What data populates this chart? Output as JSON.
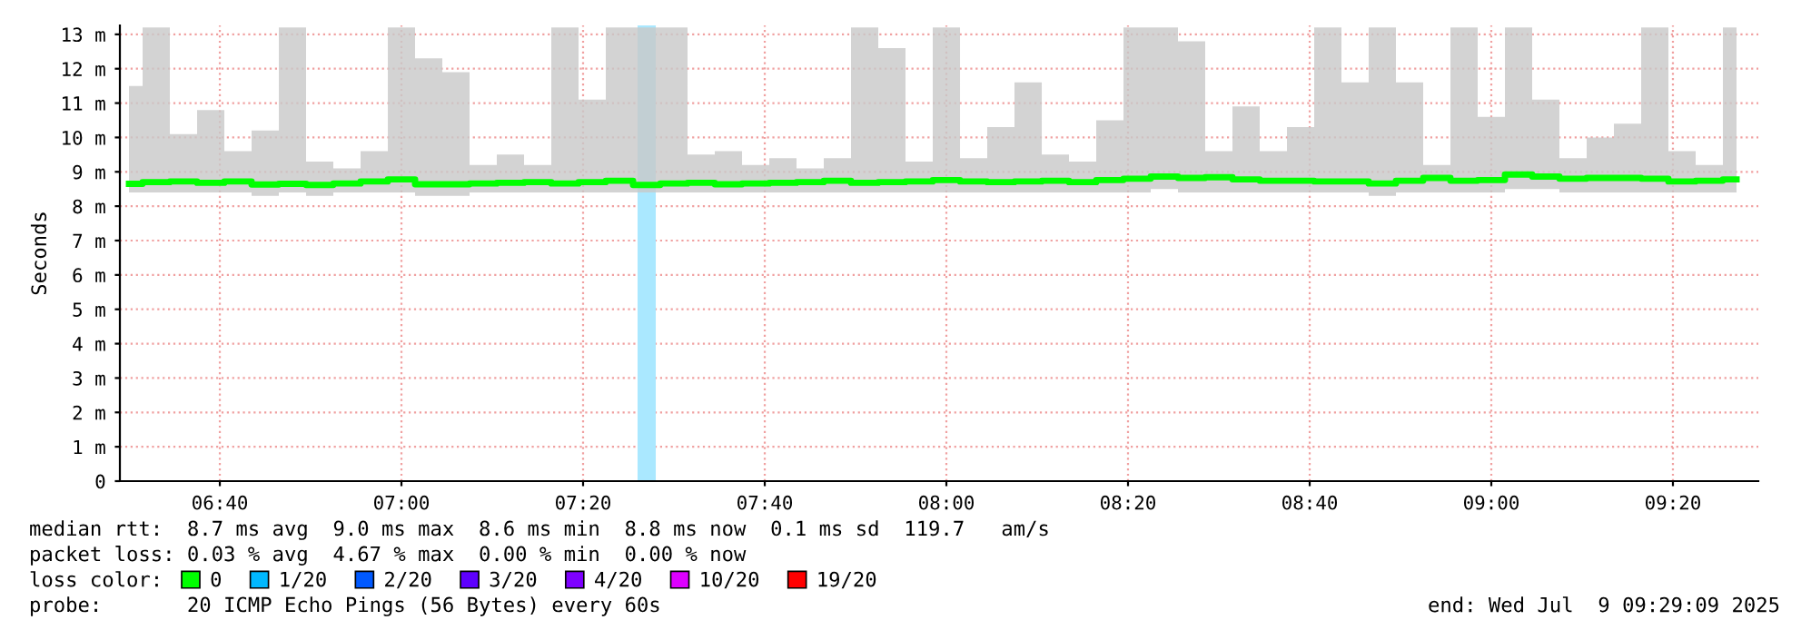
{
  "chart_data": {
    "type": "line",
    "ylabel": "Seconds",
    "legend_title": "loss color:",
    "legend": "bottom",
    "grid": true,
    "line_style": "solid",
    "marker": "none",
    "xlim": [
      6.4833,
      9.49
    ],
    "xticks": [
      {
        "value": 6.6667,
        "label": "06:40"
      },
      {
        "value": 7.0,
        "label": "07:00"
      },
      {
        "value": 7.3333,
        "label": "07:20"
      },
      {
        "value": 7.6667,
        "label": "07:40"
      },
      {
        "value": 8.0,
        "label": "08:00"
      },
      {
        "value": 8.3333,
        "label": "08:20"
      },
      {
        "value": 8.6667,
        "label": "08:40"
      },
      {
        "value": 9.0,
        "label": "09:00"
      },
      {
        "value": 9.3333,
        "label": "09:20"
      }
    ],
    "ylim": [
      0,
      13.26
    ],
    "yticks": [
      0,
      {
        "value": 1,
        "label": "1 m"
      },
      {
        "value": 2,
        "label": "2 m"
      },
      {
        "value": 3,
        "label": "3 m"
      },
      {
        "value": 4,
        "label": "4 m"
      },
      {
        "value": 5,
        "label": "5 m"
      },
      {
        "value": 6,
        "label": "6 m"
      },
      {
        "value": 7,
        "label": "7 m"
      },
      {
        "value": 8,
        "label": "8 m"
      },
      {
        "value": 9,
        "label": "9 m"
      },
      {
        "value": 10,
        "label": "10 m"
      },
      {
        "value": 11,
        "label": "11 m"
      },
      {
        "value": 12,
        "label": "12 m"
      },
      {
        "value": 13,
        "label": "13 m"
      }
    ],
    "x": [
      6.5,
      6.55,
      6.6,
      6.65,
      6.7,
      6.75,
      6.8,
      6.85,
      6.9,
      6.95,
      7.0,
      7.05,
      7.1,
      7.15,
      7.2,
      7.25,
      7.3,
      7.35,
      7.4,
      7.45,
      7.5,
      7.55,
      7.6,
      7.65,
      7.7,
      7.75,
      7.8,
      7.85,
      7.9,
      7.95,
      8.0,
      8.05,
      8.1,
      8.15,
      8.2,
      8.25,
      8.3,
      8.35,
      8.4,
      8.45,
      8.5,
      8.55,
      8.6,
      8.65,
      8.7,
      8.75,
      8.8,
      8.85,
      8.9,
      8.95,
      9.0,
      9.05,
      9.1,
      9.15,
      9.2,
      9.25,
      9.3,
      9.35,
      9.4,
      9.45
    ],
    "series": [
      {
        "name": "0",
        "color": "#00ff00",
        "values": [
          8.65,
          8.7,
          8.72,
          8.68,
          8.72,
          8.63,
          8.65,
          8.62,
          8.66,
          8.72,
          8.78,
          8.64,
          8.64,
          8.66,
          8.68,
          8.7,
          8.66,
          8.7,
          8.74,
          8.62,
          8.66,
          8.68,
          8.64,
          8.66,
          8.68,
          8.7,
          8.74,
          8.68,
          8.7,
          8.72,
          8.76,
          8.72,
          8.7,
          8.72,
          8.74,
          8.7,
          8.76,
          8.8,
          8.86,
          8.82,
          8.84,
          8.78,
          8.74,
          8.74,
          8.72,
          8.72,
          8.66,
          8.74,
          8.82,
          8.74,
          8.76,
          8.92,
          8.86,
          8.8,
          8.82,
          8.82,
          8.8,
          8.72,
          8.74,
          8.78
        ],
        "lower": [
          8.4,
          8.4,
          8.4,
          8.4,
          8.4,
          8.3,
          8.4,
          8.3,
          8.4,
          8.4,
          8.4,
          8.3,
          8.3,
          8.4,
          8.4,
          8.4,
          8.4,
          8.4,
          8.4,
          8.4,
          8.4,
          8.4,
          8.4,
          8.4,
          8.4,
          8.4,
          8.4,
          8.4,
          8.4,
          8.4,
          8.4,
          8.4,
          8.4,
          8.4,
          8.4,
          8.4,
          8.4,
          8.4,
          8.5,
          8.4,
          8.4,
          8.4,
          8.4,
          8.4,
          8.4,
          8.4,
          8.3,
          8.4,
          8.4,
          8.4,
          8.4,
          8.5,
          8.5,
          8.4,
          8.4,
          8.4,
          8.4,
          8.4,
          8.4,
          8.4
        ],
        "upper": [
          11.5,
          13.2,
          10.1,
          10.8,
          9.6,
          10.2,
          13.2,
          9.3,
          9.1,
          9.6,
          13.2,
          12.3,
          11.9,
          9.2,
          9.5,
          9.2,
          13.2,
          11.1,
          13.2,
          13.2,
          13.2,
          9.5,
          9.6,
          9.2,
          9.4,
          9.1,
          9.4,
          13.2,
          12.6,
          9.3,
          13.2,
          9.4,
          10.3,
          11.6,
          9.5,
          9.3,
          10.5,
          13.2,
          13.2,
          12.8,
          9.6,
          10.9,
          9.6,
          10.3,
          13.2,
          11.6,
          13.2,
          11.6,
          9.2,
          13.2,
          10.6,
          13.2,
          11.1,
          9.4,
          10.0,
          10.4,
          13.2,
          9.6,
          9.2,
          13.2
        ]
      },
      {
        "name": "1/20",
        "color": "#00b8ff",
        "values": [
          null,
          null,
          null,
          null,
          null,
          null,
          null,
          null,
          null,
          null,
          null,
          null,
          null,
          null,
          null,
          null,
          null,
          null,
          null,
          null,
          null,
          null,
          null,
          null,
          null,
          null,
          null,
          null,
          null,
          null,
          null,
          null,
          null,
          null,
          null,
          null,
          null,
          null,
          null,
          null,
          null,
          null,
          null,
          null,
          null,
          null,
          null,
          null,
          null,
          null,
          null,
          null,
          null,
          null,
          null,
          null,
          null,
          null,
          null,
          null
        ]
      },
      {
        "name": "2/20",
        "color": "#0059ff",
        "values": [
          null,
          null,
          null,
          null,
          null,
          null,
          null,
          null,
          null,
          null,
          null,
          null,
          null,
          null,
          null,
          null,
          null,
          null,
          null,
          null,
          null,
          null,
          null,
          null,
          null,
          null,
          null,
          null,
          null,
          null,
          null,
          null,
          null,
          null,
          null,
          null,
          null,
          null,
          null,
          null,
          null,
          null,
          null,
          null,
          null,
          null,
          null,
          null,
          null,
          null,
          null,
          null,
          null,
          null,
          null,
          null,
          null,
          null,
          null,
          null
        ]
      },
      {
        "name": "3/20",
        "color": "#5e00ff",
        "values": [
          null,
          null,
          null,
          null,
          null,
          null,
          null,
          null,
          null,
          null,
          null,
          null,
          null,
          null,
          null,
          null,
          null,
          null,
          null,
          null,
          null,
          null,
          null,
          null,
          null,
          null,
          null,
          null,
          null,
          null,
          null,
          null,
          null,
          null,
          null,
          null,
          null,
          null,
          null,
          null,
          null,
          null,
          null,
          null,
          null,
          null,
          null,
          null,
          null,
          null,
          null,
          null,
          null,
          null,
          null,
          null,
          null,
          null,
          null,
          null
        ]
      },
      {
        "name": "4/20",
        "color": "#7e00ff",
        "values": [
          null,
          null,
          null,
          null,
          null,
          null,
          null,
          null,
          null,
          null,
          null,
          null,
          null,
          null,
          null,
          null,
          null,
          null,
          null,
          null,
          null,
          null,
          null,
          null,
          null,
          null,
          null,
          null,
          null,
          null,
          null,
          null,
          null,
          null,
          null,
          null,
          null,
          null,
          null,
          null,
          null,
          null,
          null,
          null,
          null,
          null,
          null,
          null,
          null,
          null,
          null,
          null,
          null,
          null,
          null,
          null,
          null,
          null,
          null,
          null
        ]
      },
      {
        "name": "10/20",
        "color": "#dd00ff",
        "values": [
          null,
          null,
          null,
          null,
          null,
          null,
          null,
          null,
          null,
          null,
          null,
          null,
          null,
          null,
          null,
          null,
          null,
          null,
          null,
          null,
          null,
          null,
          null,
          null,
          null,
          null,
          null,
          null,
          null,
          null,
          null,
          null,
          null,
          null,
          null,
          null,
          null,
          null,
          null,
          null,
          null,
          null,
          null,
          null,
          null,
          null,
          null,
          null,
          null,
          null,
          null,
          null,
          null,
          null,
          null,
          null,
          null,
          null,
          null,
          null
        ]
      },
      {
        "name": "19/20",
        "color": "#ff0000",
        "values": [
          null,
          null,
          null,
          null,
          null,
          null,
          null,
          null,
          null,
          null,
          null,
          null,
          null,
          null,
          null,
          null,
          null,
          null,
          null,
          null,
          null,
          null,
          null,
          null,
          null,
          null,
          null,
          null,
          null,
          null,
          null,
          null,
          null,
          null,
          null,
          null,
          null,
          null,
          null,
          null,
          null,
          null,
          null,
          null,
          null,
          null,
          null,
          null,
          null,
          null,
          null,
          null,
          null,
          null,
          null,
          null,
          null,
          null,
          null,
          null
        ]
      }
    ],
    "bands": [
      {
        "axis": "x",
        "from": 7.4333,
        "to": 7.4667,
        "color": "#aae8ff"
      }
    ],
    "annotations": [
      "median rtt:  8.7 ms avg  9.0 ms max  8.6 ms min  8.8 ms now  0.1 ms sd  119.7   am/s",
      "packet loss: 0.03 % avg  4.67 % max  0.00 % min  0.00 % now",
      "probe:       20 ICMP Echo Pings (56 Bytes) every 60s",
      "end: Wed Jul  9 09:29:09 2025"
    ]
  }
}
